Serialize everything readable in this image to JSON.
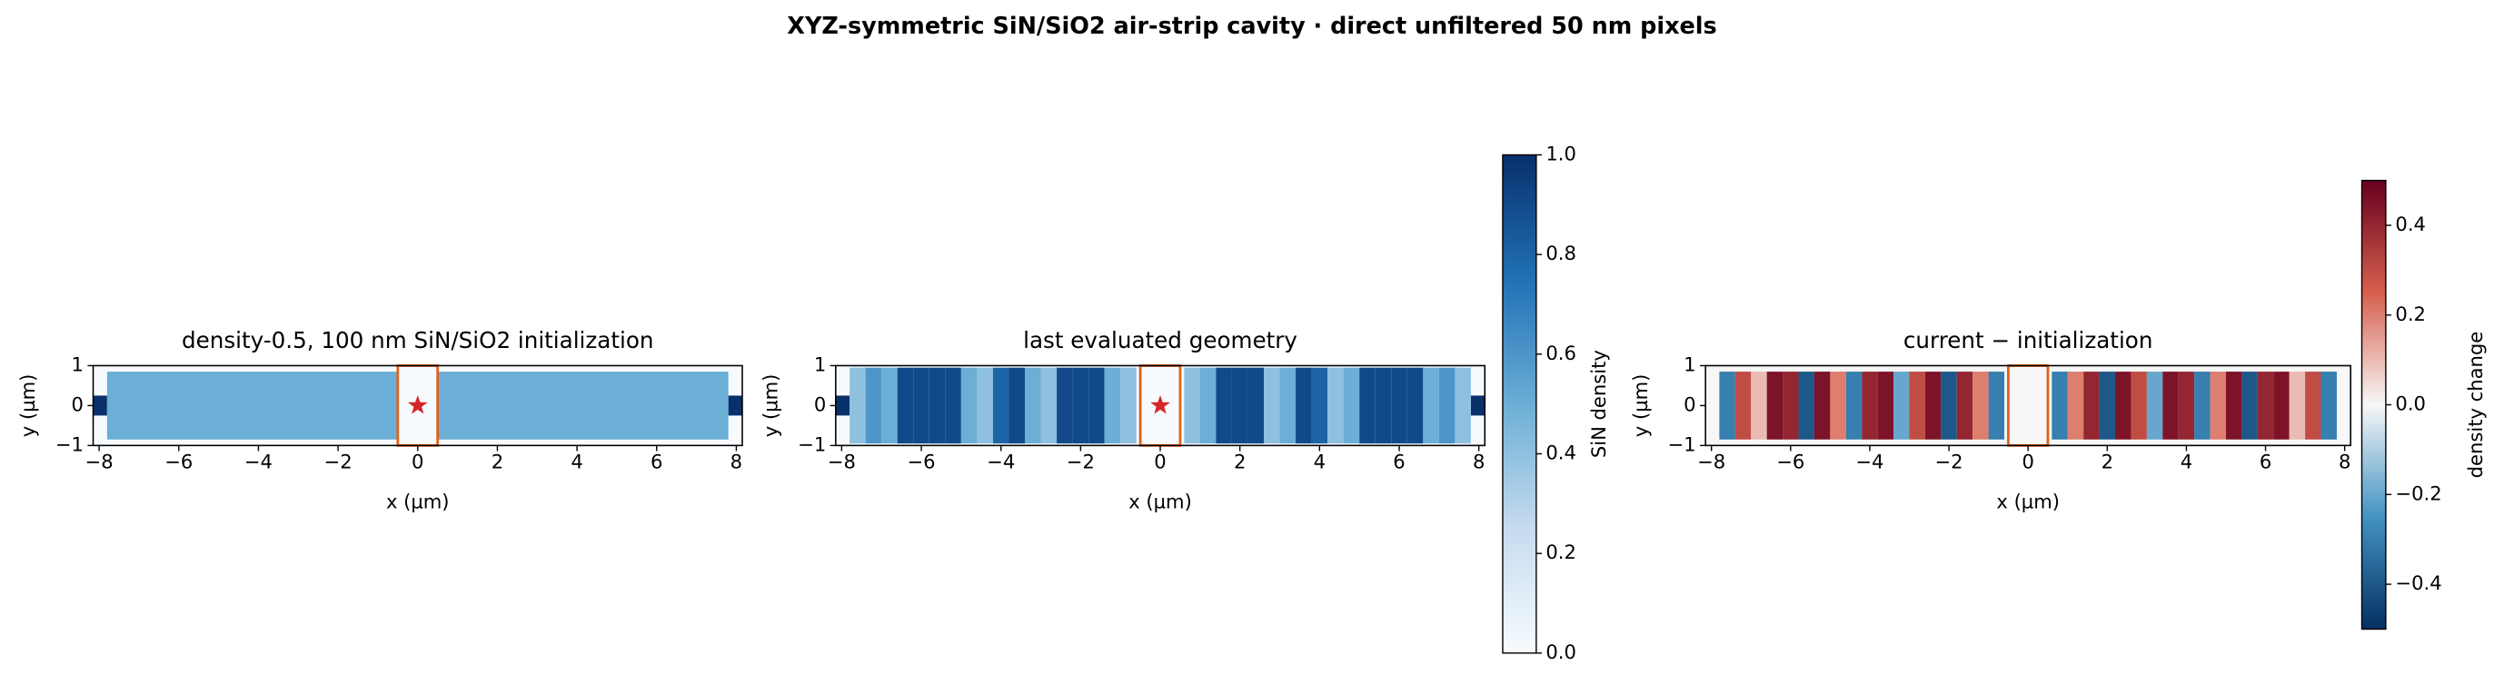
{
  "figure_title": "XYZ-symmetric SiN/SiO2 air-strip cavity · direct unfiltered 50 nm pixels",
  "chart_data": [
    {
      "type": "heatmap",
      "title": "density-0.5, 100 nm SiN/SiO2 initialization",
      "xlabel": "x (µm)",
      "ylabel": "y (µm)",
      "xlim": [
        -8.15,
        8.15
      ],
      "ylim": [
        -1,
        1
      ],
      "xticks": [
        {
          "value": -8,
          "label": "−8"
        },
        {
          "value": -6,
          "label": "−6"
        },
        {
          "value": -4,
          "label": "−4"
        },
        {
          "value": -2,
          "label": "−2"
        },
        0,
        2,
        4,
        6,
        8
      ],
      "yticks": [
        {
          "value": -1,
          "label": "−1"
        },
        0,
        1
      ],
      "colormap": "Blues",
      "clim": [
        0,
        1
      ],
      "background_value": 0,
      "edges": [
        -7.8,
        -0.5,
        0.5,
        7.8
      ],
      "values": [
        0.5,
        null,
        0.5
      ],
      "design_ylim": [
        -0.85,
        0.85
      ],
      "waveguide": {
        "value": 1,
        "halfwidth": 0.25
      },
      "cavity_x": [
        -0.5,
        0.5
      ],
      "cavity_color": "#e0621a",
      "source": [
        0,
        0
      ],
      "source_color": "#d62728"
    },
    {
      "type": "heatmap",
      "title": "last evaluated geometry",
      "xlabel": "x (µm)",
      "ylabel": "y (µm)",
      "xlim": [
        -8.15,
        8.15
      ],
      "ylim": [
        -1,
        1
      ],
      "xticks": [
        {
          "value": -8,
          "label": "−8"
        },
        {
          "value": -6,
          "label": "−6"
        },
        {
          "value": -4,
          "label": "−4"
        },
        {
          "value": -2,
          "label": "−2"
        },
        0,
        2,
        4,
        6,
        8
      ],
      "yticks": [
        {
          "value": -1,
          "label": "−1"
        },
        0,
        1
      ],
      "colormap": "Blues",
      "clim": [
        0,
        1
      ],
      "background_value": 0,
      "edges": [
        -7.8,
        -7.4,
        -7.0,
        -6.6,
        -6.2,
        -5.8,
        -5.4,
        -5.0,
        -4.6,
        -4.2,
        -3.8,
        -3.4,
        -3.0,
        -2.6,
        -2.2,
        -1.8,
        -1.4,
        -1.0,
        -0.6,
        0.6,
        1.0,
        1.4,
        1.8,
        2.2,
        2.6,
        3.0,
        3.4,
        3.8,
        4.2,
        4.6,
        5.0,
        5.4,
        5.8,
        6.2,
        6.6,
        7.0,
        7.4,
        7.8
      ],
      "values": [
        0.4,
        0.6,
        0.5,
        0.9,
        0.9,
        0.9,
        0.9,
        0.5,
        0.4,
        0.8,
        0.9,
        0.5,
        0.4,
        0.9,
        0.9,
        0.9,
        0.5,
        0.4,
        null,
        0.4,
        0.5,
        0.9,
        0.9,
        0.9,
        0.4,
        0.5,
        0.9,
        0.8,
        0.4,
        0.5,
        0.9,
        0.9,
        0.9,
        0.9,
        0.5,
        0.6,
        0.4
      ],
      "design_ylim": [
        -0.95,
        0.95
      ],
      "waveguide": {
        "value": 1,
        "halfwidth": 0.25
      },
      "cavity_x": [
        -0.5,
        0.5
      ],
      "cavity_color": "#e0621a",
      "source": [
        0,
        0
      ],
      "source_color": "#d62728",
      "colorbar": {
        "label": "SiN density",
        "lim": [
          0,
          1
        ],
        "ticks": [
          {
            "value": 0,
            "label": "0.0"
          },
          0.2,
          0.4,
          0.6,
          0.8,
          {
            "value": 1,
            "label": "1.0"
          }
        ]
      }
    },
    {
      "type": "heatmap",
      "title": "current − initialization",
      "xlabel": "x (µm)",
      "ylabel": "y (µm)",
      "xlim": [
        -8.15,
        8.15
      ],
      "ylim": [
        -1,
        1
      ],
      "xticks": [
        {
          "value": -8,
          "label": "−8"
        },
        {
          "value": -6,
          "label": "−6"
        },
        {
          "value": -4,
          "label": "−4"
        },
        {
          "value": -2,
          "label": "−2"
        },
        0,
        2,
        4,
        6,
        8
      ],
      "yticks": [
        {
          "value": -1,
          "label": "−1"
        },
        0,
        1
      ],
      "colormap": "RdBu_r",
      "clim": [
        -0.5,
        0.5
      ],
      "background_value": 0,
      "edges": [
        -7.8,
        -7.4,
        -7.0,
        -6.6,
        -6.2,
        -5.8,
        -5.4,
        -5.0,
        -4.6,
        -4.2,
        -3.8,
        -3.4,
        -3.0,
        -2.6,
        -2.2,
        -1.8,
        -1.4,
        -1.0,
        -0.6,
        0.6,
        1.0,
        1.4,
        1.8,
        2.2,
        2.6,
        3.0,
        3.4,
        3.8,
        4.2,
        4.6,
        5.0,
        5.4,
        5.8,
        6.2,
        6.6,
        7.0,
        7.4,
        7.8
      ],
      "values": [
        -0.3,
        0.3,
        0.1,
        0.45,
        0.4,
        -0.4,
        0.45,
        0.2,
        -0.3,
        0.4,
        0.45,
        -0.2,
        0.3,
        0.45,
        -0.4,
        0.4,
        0.2,
        -0.3,
        null,
        -0.3,
        0.2,
        0.4,
        -0.4,
        0.45,
        0.3,
        -0.2,
        0.45,
        0.4,
        -0.3,
        0.2,
        0.45,
        -0.4,
        0.4,
        0.45,
        0.1,
        0.3,
        -0.3
      ],
      "design_ylim": [
        -0.85,
        0.85
      ],
      "cavity_x": [
        -0.5,
        0.5
      ],
      "cavity_color": "#e0621a",
      "colorbar": {
        "label": "density change",
        "lim": [
          -0.5,
          0.5
        ],
        "ticks": [
          {
            "value": -0.4,
            "label": "−0.4"
          },
          {
            "value": -0.2,
            "label": "−0.2"
          },
          {
            "value": 0,
            "label": "0.0"
          },
          0.2,
          0.4
        ]
      }
    }
  ]
}
